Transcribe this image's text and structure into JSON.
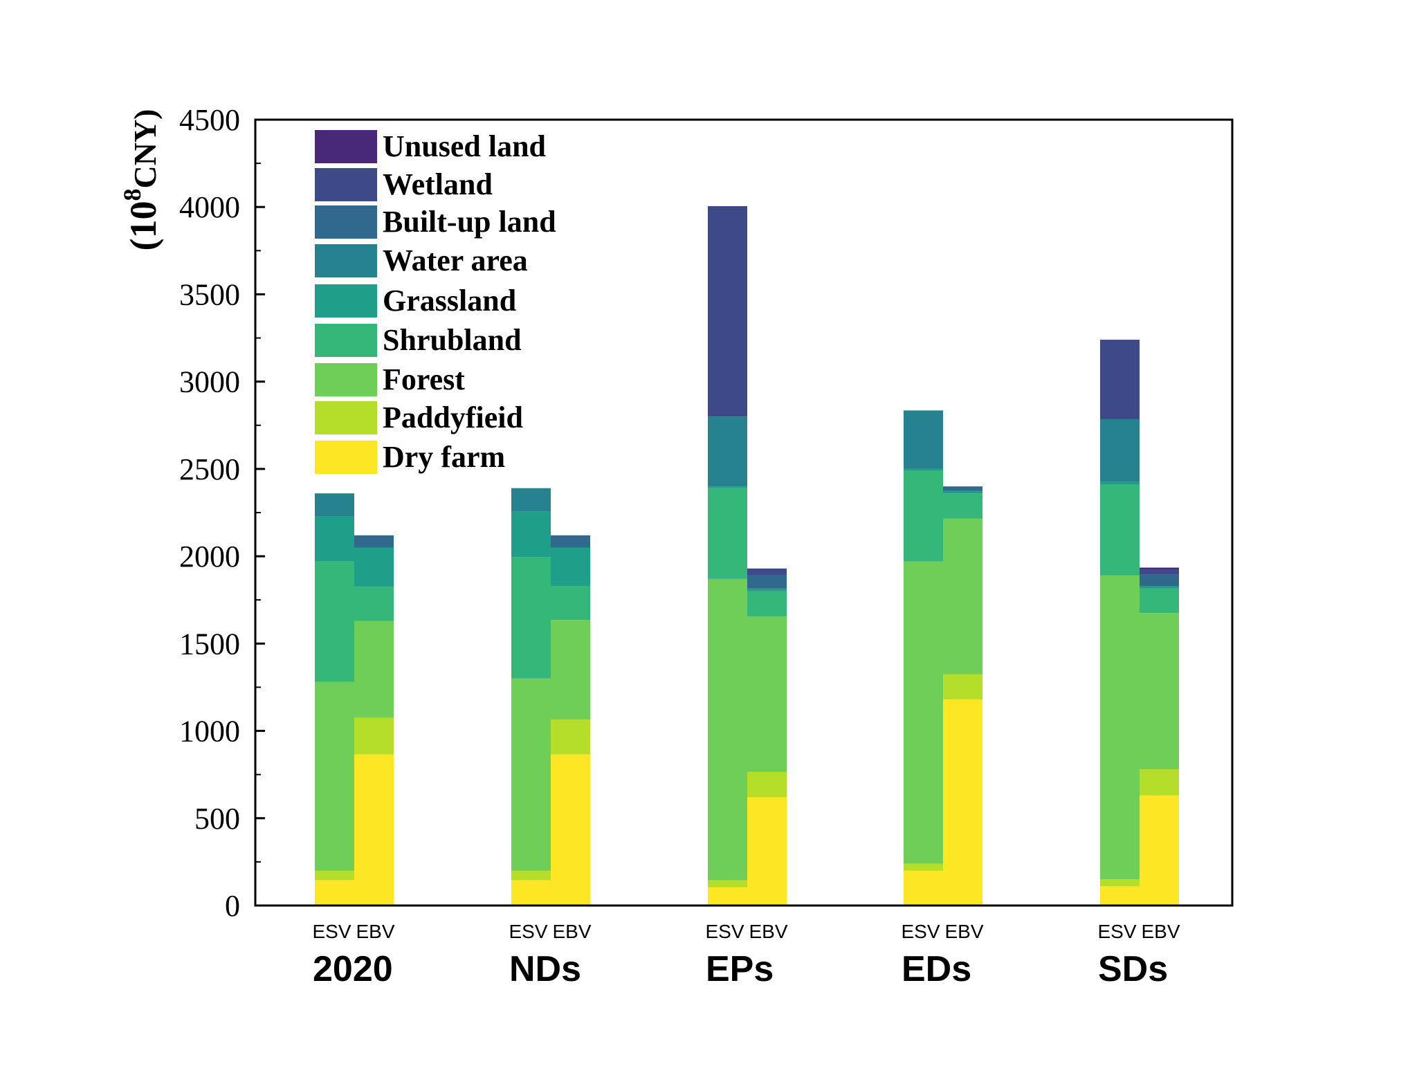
{
  "chart_data": {
    "type": "bar",
    "stacked": true,
    "ylabel": "(10⁸CNY)",
    "ylabel_base": "(10",
    "ylabel_exp": "8",
    "ylabel_unit": "CNY)",
    "ylim": [
      0,
      4500
    ],
    "yticks": [
      "0",
      "500",
      "1000",
      "1500",
      "2000",
      "2500",
      "3000",
      "3500",
      "4000",
      "4500"
    ],
    "grid": false,
    "legend_position": "top-left",
    "groups": [
      "2020",
      "NDs",
      "EPs",
      "EDs",
      "SDs"
    ],
    "sub_categories": [
      "ESV",
      "EBV"
    ],
    "series": [
      {
        "name": "Dry farm",
        "color": "#fde725",
        "values": [
          [
            145,
            865
          ],
          [
            145,
            865
          ],
          [
            105,
            620
          ],
          [
            200,
            1180
          ],
          [
            110,
            630
          ]
        ]
      },
      {
        "name": "Paddyfieid",
        "color": "#b5de2b",
        "values": [
          [
            55,
            210
          ],
          [
            55,
            200
          ],
          [
            40,
            145
          ],
          [
            40,
            145
          ],
          [
            40,
            150
          ]
        ]
      },
      {
        "name": "Forest",
        "color": "#6ece58",
        "values": [
          [
            1080,
            555
          ],
          [
            1100,
            570
          ],
          [
            1725,
            890
          ],
          [
            1730,
            890
          ],
          [
            1740,
            895
          ]
        ]
      },
      {
        "name": "Shrubland",
        "color": "#35b779",
        "values": [
          [
            690,
            195
          ],
          [
            695,
            195
          ],
          [
            520,
            145
          ],
          [
            520,
            145
          ],
          [
            520,
            140
          ]
        ]
      },
      {
        "name": "Grassland",
        "color": "#1f9e89",
        "values": [
          [
            260,
            225
          ],
          [
            260,
            220
          ],
          [
            10,
            15
          ],
          [
            10,
            15
          ],
          [
            15,
            15
          ]
        ]
      },
      {
        "name": "Water area",
        "color": "#26828e",
        "values": [
          [
            130,
            0
          ],
          [
            135,
            0
          ],
          [
            400,
            0
          ],
          [
            335,
            0
          ],
          [
            360,
            0
          ]
        ]
      },
      {
        "name": "Built-up land",
        "color": "#31688e",
        "values": [
          [
            0,
            70
          ],
          [
            0,
            70
          ],
          [
            0,
            75
          ],
          [
            0,
            25
          ],
          [
            0,
            65
          ]
        ]
      },
      {
        "name": "Wetland",
        "color": "#3e4989",
        "values": [
          [
            0,
            0
          ],
          [
            0,
            0
          ],
          [
            1205,
            40
          ],
          [
            0,
            0
          ],
          [
            455,
            30
          ]
        ]
      },
      {
        "name": "Unused land",
        "color": "#482878",
        "values": [
          [
            0,
            0
          ],
          [
            0,
            0
          ],
          [
            0,
            0
          ],
          [
            0,
            0
          ],
          [
            0,
            10
          ]
        ]
      }
    ]
  }
}
